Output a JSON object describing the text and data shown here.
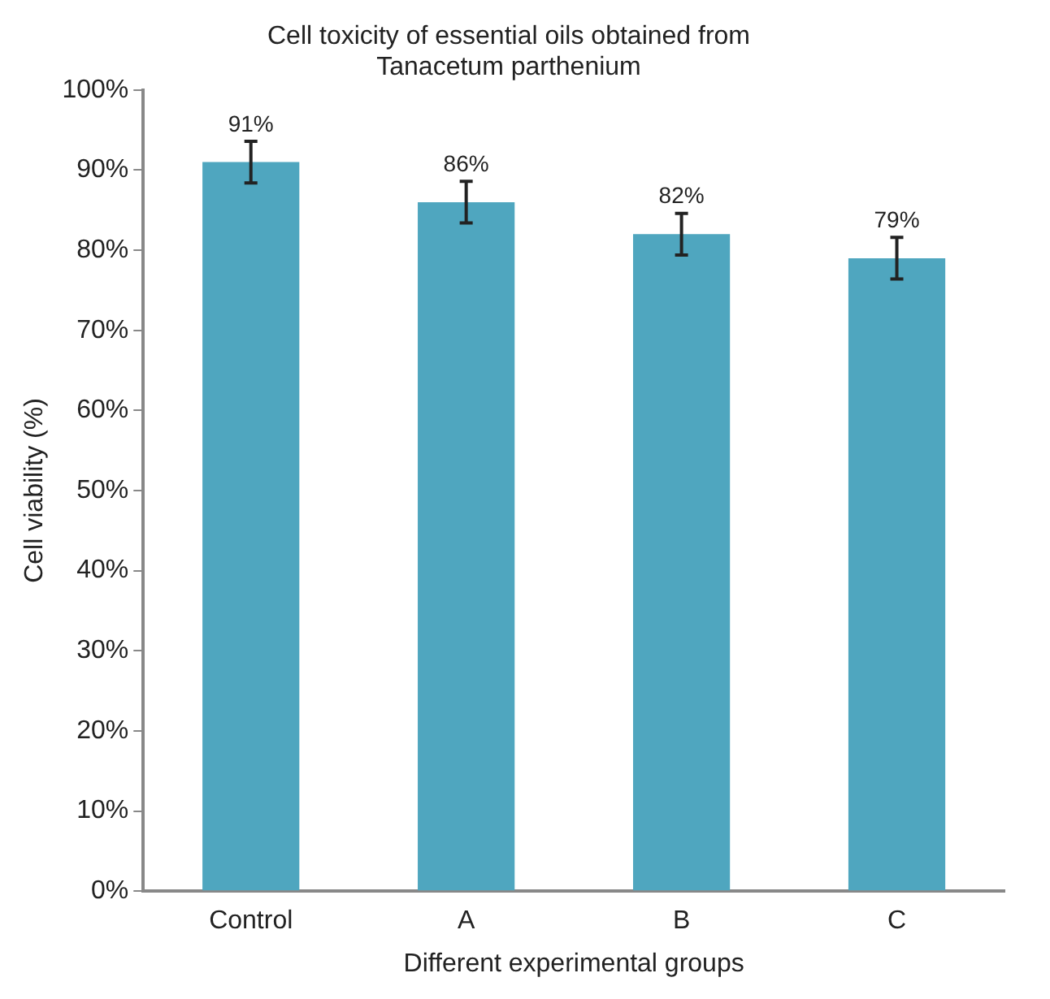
{
  "chart_data": {
    "type": "bar",
    "title": [
      "Cell toxicity of essential oils obtained from",
      "Tanacetum parthenium"
    ],
    "xlabel": "Different experimental groups",
    "ylabel": "Cell viability (%)",
    "categories": [
      "Control",
      "A",
      "B",
      "C"
    ],
    "values": [
      91,
      86,
      82,
      79
    ],
    "errors": [
      2.6,
      2.6,
      2.6,
      2.6
    ],
    "color": "#4fa6bf",
    "value_labels": [
      "91%",
      "86%",
      "82%",
      "79%"
    ],
    "ylim": [
      0,
      100
    ],
    "yticks": [
      {
        "value": 0,
        "label": "0%"
      },
      {
        "value": 10,
        "label": "10%"
      },
      {
        "value": 20,
        "label": "20%"
      },
      {
        "value": 30,
        "label": "30%"
      },
      {
        "value": 40,
        "label": "40%"
      },
      {
        "value": 50,
        "label": "50%"
      },
      {
        "value": 60,
        "label": "60%"
      },
      {
        "value": 70,
        "label": "70%"
      },
      {
        "value": 80,
        "label": "80%"
      },
      {
        "value": 90,
        "label": "90%"
      },
      {
        "value": 100,
        "label": "100%"
      }
    ],
    "grid": false,
    "legend": false
  }
}
